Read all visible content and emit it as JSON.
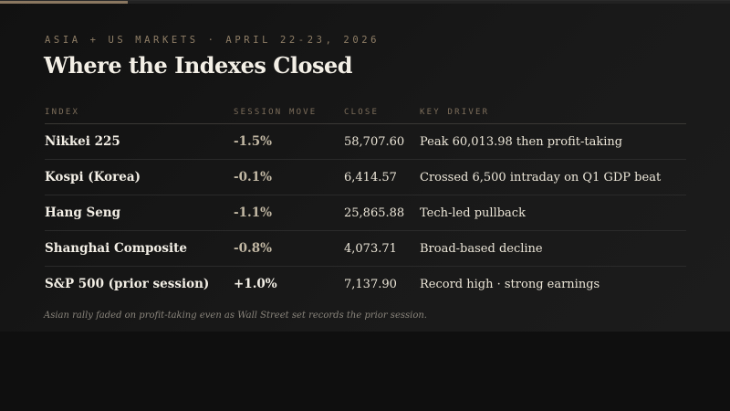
{
  "progress": {
    "fraction": 0.175,
    "color": "#8a7760"
  },
  "header": {
    "eyebrow": "ASIA + US MARKETS · APRIL 22-23, 2026",
    "title": "Where the Indexes Closed"
  },
  "table": {
    "columns": [
      "INDEX",
      "SESSION MOVE",
      "CLOSE",
      "KEY DRIVER"
    ],
    "rows": [
      {
        "index": "Nikkei 225",
        "move": "-1.5%",
        "close": "58,707.60",
        "driver": "Peak 60,013.98 then profit-taking"
      },
      {
        "index": "Kospi (Korea)",
        "move": "-0.1%",
        "close": "6,414.57",
        "driver": "Crossed 6,500 intraday on Q1 GDP beat"
      },
      {
        "index": "Hang Seng",
        "move": "-1.1%",
        "close": "25,865.88",
        "driver": "Tech-led pullback"
      },
      {
        "index": "Shanghai Composite",
        "move": "-0.8%",
        "close": "4,073.71",
        "driver": "Broad-based decline"
      },
      {
        "index": "S&P 500 (prior session)",
        "move": "+1.0%",
        "close": "7,137.90",
        "driver": "Record high · strong earnings"
      }
    ]
  },
  "footnote": "Asian rally faded on profit-taking even as Wall Street set records the prior session.",
  "colors": {
    "accent": "#8f7e66",
    "negative": "#c2b8a4",
    "positive": "#f3efe6"
  }
}
